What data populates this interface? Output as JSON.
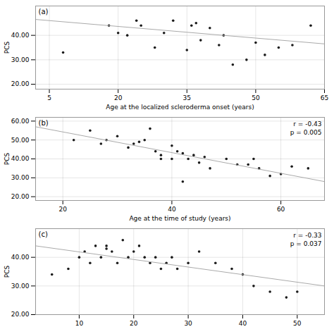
{
  "chart_data": [
    {
      "type": "scatter",
      "panel_label": "(a)",
      "xlabel": "Age at the localized scleroderma onset (years)",
      "ylabel": "PCS",
      "xlim": [
        2,
        65
      ],
      "ylim": [
        18,
        52
      ],
      "xticks": [
        5,
        20,
        35,
        50,
        65
      ],
      "yticks": [
        {
          "value": 20.0,
          "label": "20.00"
        },
        {
          "value": 30.0,
          "label": "30.00"
        },
        {
          "value": 40.0,
          "label": "40.00"
        }
      ],
      "grid": true,
      "series": [
        {
          "type": "scatter",
          "color": "#1a1a1a",
          "x": [
            8,
            18,
            20,
            22,
            24,
            25,
            28,
            30,
            32,
            35,
            36,
            37,
            38,
            40,
            42,
            43,
            45,
            48,
            50,
            52,
            55,
            58,
            62
          ],
          "values": [
            33,
            44,
            41,
            40,
            46,
            44,
            35,
            41,
            46,
            34,
            44,
            45,
            38,
            43,
            36,
            40,
            28,
            30,
            37,
            32,
            35,
            36,
            44
          ]
        },
        {
          "type": "line",
          "color": "#aaaaaa",
          "x": [
            2,
            65
          ],
          "values": [
            46.5,
            36.5
          ]
        }
      ]
    },
    {
      "type": "scatter",
      "panel_label": "(b)",
      "xlabel": "Age at the time of study (years)",
      "ylabel": "PCS",
      "xlim": [
        15,
        68
      ],
      "ylim": [
        18,
        62
      ],
      "xticks": [
        20,
        40,
        60
      ],
      "yticks": [
        {
          "value": 20.0,
          "label": "20.00"
        },
        {
          "value": 30.0,
          "label": "30.00"
        },
        {
          "value": 40.0,
          "label": "40.00"
        },
        {
          "value": 50.0,
          "label": "50.00"
        },
        {
          "value": 60.0,
          "label": "60.00"
        }
      ],
      "grid": true,
      "annotations": [
        "r = -0.43",
        "p = 0.005"
      ],
      "series": [
        {
          "type": "scatter",
          "color": "#1a1a1a",
          "x": [
            22,
            25,
            27,
            28,
            30,
            32,
            33,
            34,
            35,
            36,
            37,
            38,
            38,
            40,
            40,
            41,
            42,
            42,
            43,
            44,
            45,
            46,
            47,
            50,
            52,
            54,
            55,
            56,
            58,
            60,
            62,
            65
          ],
          "values": [
            50,
            55,
            48,
            50,
            52,
            46,
            48,
            49,
            50,
            56,
            44,
            42,
            40,
            40,
            47,
            44,
            43,
            28,
            40,
            42,
            38,
            41,
            35,
            40,
            37,
            37,
            40,
            35,
            31,
            32,
            36,
            35
          ]
        },
        {
          "type": "line",
          "color": "#aaaaaa",
          "x": [
            15,
            68
          ],
          "values": [
            57,
            28
          ]
        }
      ]
    },
    {
      "type": "scatter",
      "panel_label": "(c)",
      "ylabel": "PCS",
      "xlim": [
        2,
        55
      ],
      "ylim": [
        20,
        50
      ],
      "xticks": [
        10,
        20,
        30,
        40,
        50
      ],
      "yticks": [
        {
          "value": 20.0,
          "label": "20.00"
        },
        {
          "value": 30.0,
          "label": "30.00"
        },
        {
          "value": 40.0,
          "label": "40.00"
        }
      ],
      "grid": true,
      "annotations": [
        "r = -0.33",
        "p = 0.037"
      ],
      "series": [
        {
          "type": "scatter",
          "color": "#1a1a1a",
          "x": [
            5,
            8,
            10,
            11,
            12,
            13,
            14,
            15,
            15,
            16,
            17,
            18,
            19,
            20,
            21,
            22,
            23,
            24,
            25,
            26,
            27,
            28,
            30,
            32,
            35,
            38,
            40,
            42,
            45,
            48,
            50
          ],
          "values": [
            34,
            36,
            40,
            42,
            38,
            44,
            40,
            44,
            43,
            42,
            38,
            46,
            40,
            42,
            44,
            40,
            38,
            40,
            36,
            38,
            40,
            36,
            38,
            42,
            38,
            36,
            34,
            30,
            28,
            26,
            28
          ]
        },
        {
          "type": "line",
          "color": "#aaaaaa",
          "x": [
            2,
            55
          ],
          "values": [
            44,
            30
          ]
        }
      ]
    }
  ]
}
